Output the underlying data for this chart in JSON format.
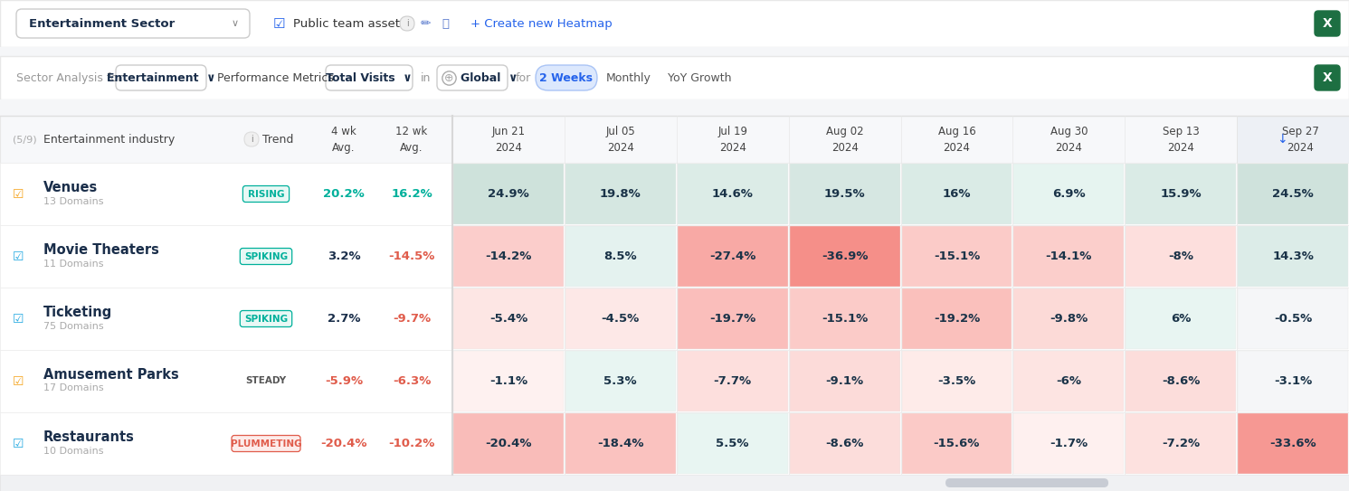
{
  "rows": [
    {
      "name": "Venues",
      "domains": "13 Domains",
      "icon_color": "#f5a623",
      "trend": "RISING",
      "trend_color": "#00b09b",
      "trend_bg": "#e8f8f5",
      "trend_border": "#00b09b",
      "avg4wk": "20.2%",
      "avg4wk_color": "#00b09b",
      "avg12wk": "16.2%",
      "avg12wk_color": "#00b09b",
      "values": [
        24.9,
        19.8,
        14.6,
        19.5,
        16.0,
        6.9,
        15.9,
        24.5
      ],
      "value_labels": [
        "24.9%",
        "19.8%",
        "14.6%",
        "19.5%",
        "16%",
        "6.9%",
        "15.9%",
        "24.5%"
      ]
    },
    {
      "name": "Movie Theaters",
      "domains": "11 Domains",
      "icon_color": "#29abe2",
      "trend": "SPIKING",
      "trend_color": "#00b09b",
      "trend_bg": "#e8f8f5",
      "trend_border": "#00b09b",
      "avg4wk": "3.2%",
      "avg4wk_color": "#1a2e4a",
      "avg12wk": "-14.5%",
      "avg12wk_color": "#e05c4b",
      "values": [
        -14.2,
        8.5,
        -27.4,
        -36.9,
        -15.1,
        -14.1,
        -8.0,
        14.3
      ],
      "value_labels": [
        "-14.2%",
        "8.5%",
        "-27.4%",
        "-36.9%",
        "-15.1%",
        "-14.1%",
        "-8%",
        "14.3%"
      ]
    },
    {
      "name": "Ticketing",
      "domains": "75 Domains",
      "icon_color": "#29abe2",
      "trend": "SPIKING",
      "trend_color": "#00b09b",
      "trend_bg": "#e8f8f5",
      "trend_border": "#00b09b",
      "avg4wk": "2.7%",
      "avg4wk_color": "#1a2e4a",
      "avg12wk": "-9.7%",
      "avg12wk_color": "#e05c4b",
      "values": [
        -5.4,
        -4.5,
        -19.7,
        -15.1,
        -19.2,
        -9.8,
        6.0,
        -0.5
      ],
      "value_labels": [
        "-5.4%",
        "-4.5%",
        "-19.7%",
        "-15.1%",
        "-19.2%",
        "-9.8%",
        "6%",
        "-0.5%"
      ]
    },
    {
      "name": "Amusement Parks",
      "domains": "17 Domains",
      "icon_color": "#f5a623",
      "trend": "STEADY",
      "trend_color": "#555555",
      "trend_bg": "#ffffff",
      "trend_border": "#ffffff",
      "avg4wk": "-5.9%",
      "avg4wk_color": "#e05c4b",
      "avg12wk": "-6.3%",
      "avg12wk_color": "#e05c4b",
      "values": [
        -1.1,
        5.3,
        -7.7,
        -9.1,
        -3.5,
        -6.0,
        -8.6,
        -3.1
      ],
      "value_labels": [
        "-1.1%",
        "5.3%",
        "-7.7%",
        "-9.1%",
        "-3.5%",
        "-6%",
        "-8.6%",
        "-3.1%"
      ]
    },
    {
      "name": "Restaurants",
      "domains": "10 Domains",
      "icon_color": "#29abe2",
      "trend": "PLUMMETING",
      "trend_color": "#e05c4b",
      "trend_bg": "#fdecea",
      "trend_border": "#e05c4b",
      "avg4wk": "-20.4%",
      "avg4wk_color": "#e05c4b",
      "avg12wk": "-10.2%",
      "avg12wk_color": "#e05c4b",
      "values": [
        -20.4,
        -18.4,
        5.5,
        -8.6,
        -15.6,
        -1.7,
        -7.2,
        -33.6
      ],
      "value_labels": [
        "-20.4%",
        "-18.4%",
        "5.5%",
        "-8.6%",
        "-15.6%",
        "-1.7%",
        "-7.2%",
        "-33.6%"
      ]
    }
  ],
  "date_cols": [
    "Jun 21\n2024",
    "Jul 05\n2024",
    "Jul 19\n2024",
    "Aug 02\n2024",
    "Aug 16\n2024",
    "Aug 30\n2024",
    "Sep 13\n2024",
    "Sep 27\n2024"
  ],
  "bg": "#ffffff",
  "topbar_bg": "#ffffff",
  "topbar_border": "#e8e8e8",
  "navbar_bg": "#ffffff",
  "navbar_border": "#e8e8e8",
  "table_header_bg": "#f7f8fa",
  "table_row_bg": "#ffffff",
  "sep27_header_bg": "#edf0f5",
  "sep27_col_bg": "#f5f6f8",
  "divider_color": "#e0e0e0",
  "scrollbar_color": "#c8ccd4",
  "scrollbar_bg": "#f0f1f3"
}
